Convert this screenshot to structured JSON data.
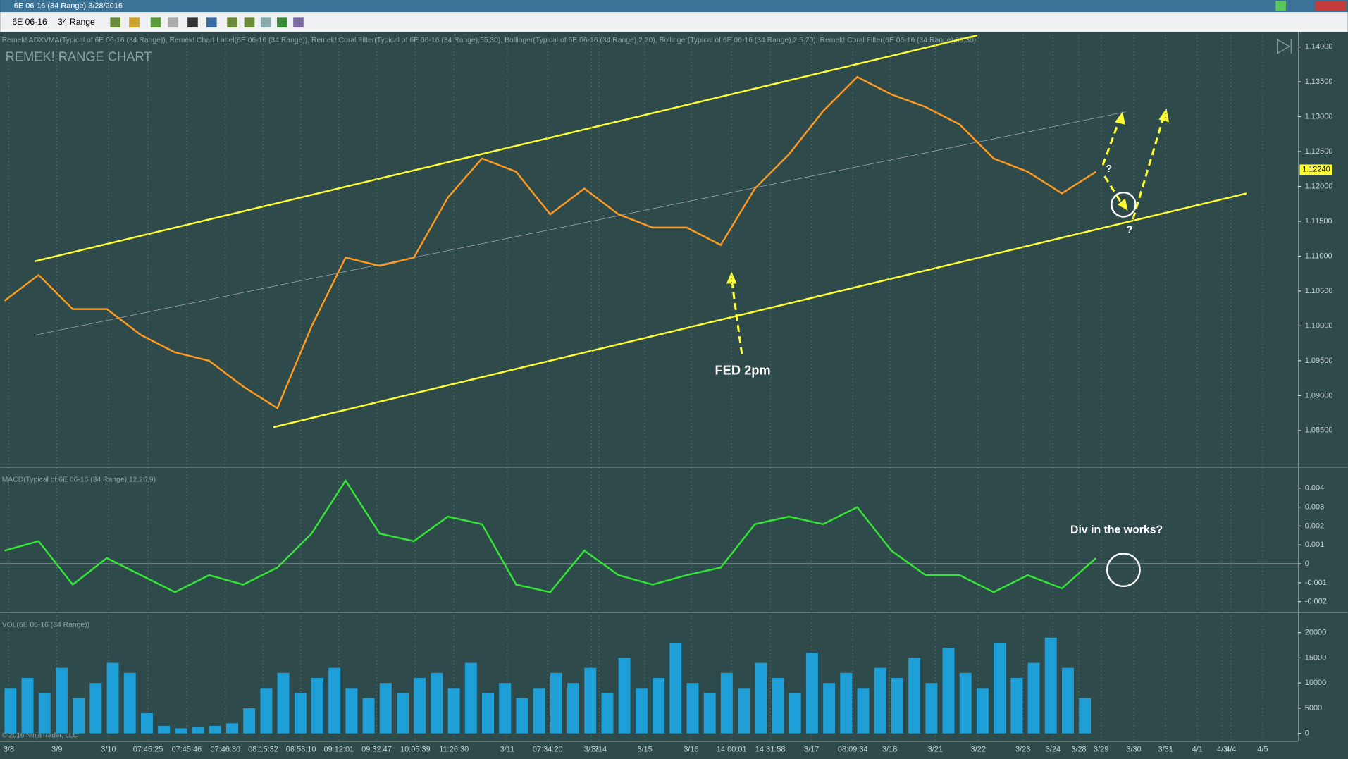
{
  "window": {
    "title": "6E 06-16 (34 Range)  3/28/2016"
  },
  "toolbar": {
    "instrument": "6E 06-16",
    "period": "34 Range"
  },
  "x_axis": {
    "labels": [
      "3/8",
      "3/9",
      "3/10",
      "07:45:25",
      "07:45:46",
      "07:46:30",
      "08:15:32",
      "08:58:10",
      "09:12:01",
      "09:32:47",
      "10:05:39",
      "11:26:30",
      "3/11",
      "07:34:20",
      "3/13",
      "3/14",
      "3/15",
      "3/16",
      "14:00:01",
      "14:31:58",
      "3/17",
      "08:09:34",
      "3/18",
      "3/21",
      "3/22",
      "3/23",
      "3/24",
      "3/28",
      "3/29",
      "3/30",
      "3/31",
      "4/1",
      "4/3",
      "4/4",
      "4/5"
    ]
  },
  "chart_data": [
    {
      "type": "line",
      "title": "REMEK! RANGE CHART",
      "subtitle": "Remek! ADXVMA(Typical of 6E 06-16 (34 Range)), Remek! Chart Label(6E 06-16 (34 Range)), Remek! Coral Filter(Typical of 6E 06-16 (34 Range),55,30), Bollinger(Typical of 6E 06-16 (34 Range),2,20), Bollinger(Typical of 6E 06-16 (34 Range),2.5,20), Remek! Coral Filter(6E 06-16 (34 Range),89,30)",
      "series": [
        {
          "color": "#ff9a1f",
          "values": [
            1.1036,
            1.1073,
            1.1024,
            1.1024,
            1.0987,
            1.0962,
            1.095,
            1.0913,
            1.0882,
            1.0999,
            1.1098,
            1.1086,
            1.1098,
            1.1184,
            1.124,
            1.1221,
            1.116,
            1.1197,
            1.116,
            1.1141,
            1.1141,
            1.1116,
            1.1197,
            1.1246,
            1.1308,
            1.1357,
            1.1332,
            1.1314,
            1.1289,
            1.124,
            1.1221,
            1.119,
            1.1221
          ]
        }
      ],
      "last_price": {
        "value": 1.1224,
        "label": "1.12240"
      },
      "annotations": [
        "FED 2pm",
        "?",
        "?"
      ],
      "ylim": [
        1.0798,
        1.1418
      ],
      "yticks": [
        {
          "value": 1.14,
          "label": "1.14000"
        },
        {
          "value": 1.135,
          "label": "1.13500"
        },
        {
          "value": 1.13,
          "label": "1.13000"
        },
        {
          "value": 1.125,
          "label": "1.12500"
        },
        {
          "value": 1.12,
          "label": "1.12000"
        },
        {
          "value": 1.115,
          "label": "1.11500"
        },
        {
          "value": 1.11,
          "label": "1.11000"
        },
        {
          "value": 1.105,
          "label": "1.10500"
        },
        {
          "value": 1.1,
          "label": "1.10000"
        },
        {
          "value": 1.095,
          "label": "1.09500"
        },
        {
          "value": 1.09,
          "label": "1.09000"
        },
        {
          "value": 1.085,
          "label": "1.08500"
        }
      ]
    },
    {
      "type": "line",
      "title": "MACD(Typical of 6E 06-16 (34 Range),12,26,9)",
      "series": [
        {
          "color": "#33e633",
          "values": [
            0.0007,
            0.0012,
            -0.0011,
            0.0003,
            -0.0006,
            -0.0015,
            -0.0006,
            -0.0011,
            -0.0002,
            0.0016,
            0.0044,
            0.0016,
            0.0012,
            0.0025,
            0.0021,
            -0.0011,
            -0.0015,
            0.0007,
            -0.0006,
            -0.0011,
            -0.0006,
            -0.0002,
            0.0021,
            0.0025,
            0.0021,
            0.003,
            0.0007,
            -0.0006,
            -0.0006,
            -0.0015,
            -0.0006,
            -0.0013,
            0.0003
          ]
        }
      ],
      "annotations": [
        "Div in the works?"
      ],
      "ylim": [
        -0.00255,
        0.00491
      ],
      "yticks": [
        0.004,
        0.003,
        0.002,
        0.001,
        0,
        -0.001,
        -0.002
      ]
    },
    {
      "type": "bar",
      "title": "VOL(6E 06-16 (34 Range))",
      "color": "#1e9fd8",
      "values": [
        9000,
        11000,
        8000,
        13000,
        7000,
        10000,
        14000,
        12000,
        4000,
        1500,
        1000,
        1200,
        1500,
        2000,
        5000,
        9000,
        12000,
        8000,
        11000,
        13000,
        9000,
        7000,
        10000,
        8000,
        11000,
        12000,
        9000,
        14000,
        8000,
        10000,
        7000,
        9000,
        12000,
        10000,
        13000,
        8000,
        15000,
        9000,
        11000,
        18000,
        10000,
        8000,
        12000,
        9000,
        14000,
        11000,
        8000,
        16000,
        10000,
        12000,
        9000,
        13000,
        11000,
        15000,
        10000,
        17000,
        12000,
        9000,
        18000,
        11000,
        14000,
        19000,
        13000,
        7000
      ],
      "copyright": "© 2016 NinjaTrader, LLC",
      "ylim": [
        -1500,
        23400
      ],
      "yticks": [
        20000,
        15000,
        10000,
        5000,
        0
      ]
    }
  ]
}
